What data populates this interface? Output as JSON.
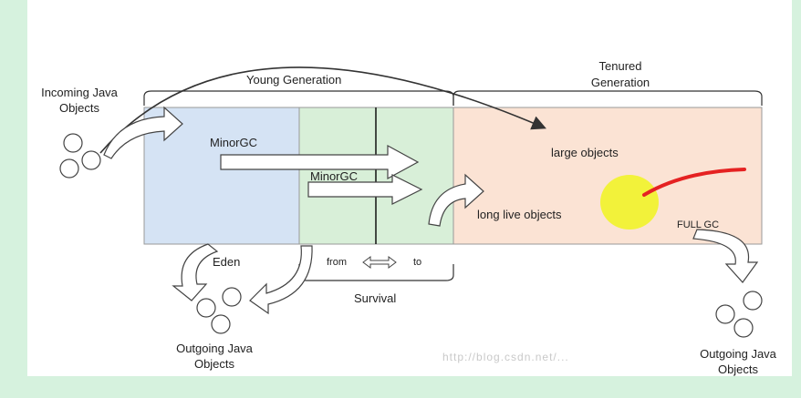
{
  "labels": {
    "incoming": "Incoming Java\nObjects",
    "young_generation": "Young Generation",
    "tenured_generation": "Tenured\nGeneration",
    "minorgc_1": "MinorGC",
    "minorgc_2": "MinorGC",
    "large_objects": "large objects",
    "long_live_objects": "long live objects",
    "full_gc": "FULL GC",
    "eden": "Eden",
    "from": "from",
    "to": "to",
    "survival": "Survival",
    "outgoing_left": "Outgoing Java\nObjects",
    "outgoing_right": "Outgoing Java\nObjects",
    "watermark": "http://blog.csdn.net/..."
  },
  "colors": {
    "background": "#d6f2de",
    "eden": "#d5e3f4",
    "survivor": "#d8efd8",
    "tenured": "#fbe3d4",
    "blob": "#f2f23a",
    "scribble": "#e52222"
  }
}
